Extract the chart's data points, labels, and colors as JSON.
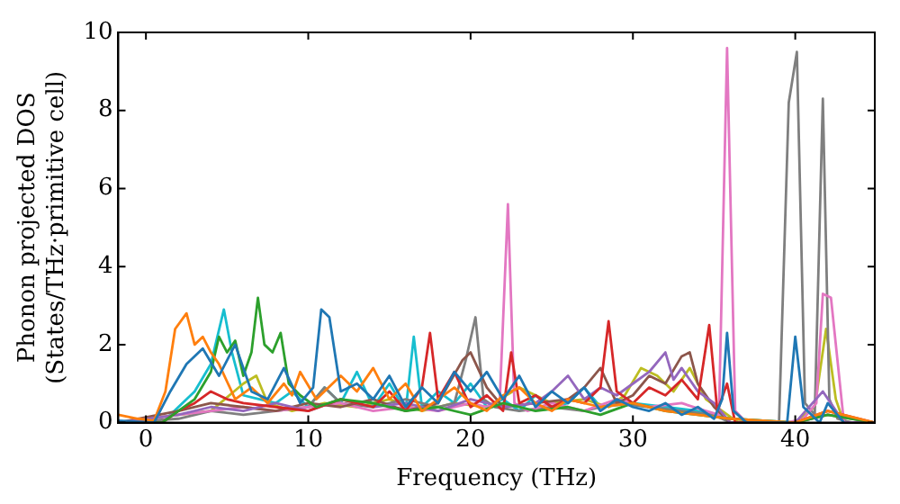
{
  "chart_data": {
    "type": "line",
    "xlabel": "Frequency (THz)",
    "ylabel": "Phonon projected DOS\n(States/THz·primitive cell)",
    "xlim": [
      -1.7,
      44.9
    ],
    "ylim": [
      0,
      10
    ],
    "xticks": [
      0,
      10,
      20,
      30,
      40
    ],
    "yticks": [
      0,
      2,
      4,
      6,
      8,
      10
    ],
    "grid": false,
    "legend": false,
    "marker": "none",
    "line_style": "solid",
    "series": [
      {
        "color": "#1f77b4",
        "x": [
          -1.7,
          0.5,
          1.5,
          2.5,
          3.5,
          4.5,
          5.5,
          6.5,
          7.5,
          8.5,
          9.5,
          10.3,
          10.8,
          11.3,
          12,
          13,
          14,
          15,
          16,
          17,
          18,
          19,
          20,
          21,
          22,
          23,
          24,
          25,
          26,
          27,
          28,
          29,
          30,
          31,
          32,
          33,
          34,
          35,
          35.5,
          35.8,
          36.2,
          37,
          39.5,
          40,
          40.5,
          41.5,
          42,
          43
        ],
        "values": [
          0.05,
          0,
          0.8,
          1.5,
          1.9,
          1.2,
          2.0,
          0.8,
          0.6,
          1.4,
          0.5,
          0.9,
          2.9,
          2.7,
          0.8,
          1.0,
          0.6,
          1.2,
          0.4,
          0.9,
          0.5,
          1.3,
          0.8,
          1.3,
          0.6,
          1.2,
          0.4,
          0.8,
          0.5,
          0.9,
          0.3,
          0.6,
          0.4,
          0.3,
          0.5,
          0.2,
          0.4,
          0.1,
          0.6,
          2.3,
          0.3,
          0,
          0,
          2.2,
          0.4,
          0,
          0.5,
          0
        ]
      },
      {
        "color": "#ff7f0e",
        "x": [
          -1.7,
          -0.5,
          0.5,
          1.2,
          1.8,
          2.5,
          3.0,
          3.5,
          4.0,
          4.5,
          5.5,
          6.5,
          7.5,
          8.5,
          9.0,
          9.5,
          10.5,
          12,
          13,
          14,
          15,
          16,
          17,
          18,
          19,
          20,
          21,
          22,
          23,
          24,
          25,
          26,
          28,
          30,
          32,
          34,
          36,
          40,
          42,
          44.9
        ],
        "values": [
          0.2,
          0.1,
          0.05,
          0.8,
          2.4,
          2.8,
          2.0,
          2.2,
          1.8,
          1.5,
          0.6,
          0.9,
          0.5,
          1.0,
          0.7,
          1.3,
          0.6,
          1.2,
          0.8,
          1.4,
          0.6,
          1.0,
          0.3,
          0.6,
          0.9,
          0.5,
          0.3,
          0.7,
          0.9,
          0.5,
          0.3,
          0.6,
          0.4,
          0.5,
          0.3,
          0.2,
          0.1,
          0,
          0.3,
          0
        ]
      },
      {
        "color": "#2ca02c",
        "x": [
          -1.7,
          1,
          2,
          3,
          4,
          4.5,
          5,
          5.5,
          6,
          6.5,
          6.9,
          7.3,
          7.8,
          8.3,
          8.8,
          9.5,
          10.5,
          12,
          14,
          16,
          18,
          20,
          22,
          24,
          26,
          28,
          30,
          32,
          34,
          36,
          40,
          42,
          44.9
        ],
        "values": [
          0,
          0,
          0.3,
          0.6,
          1.3,
          2.2,
          1.8,
          2.1,
          1.2,
          1.8,
          3.2,
          2.0,
          1.8,
          2.3,
          1.0,
          0.7,
          0.4,
          0.6,
          0.5,
          0.3,
          0.4,
          0.2,
          0.5,
          0.3,
          0.4,
          0.2,
          0.5,
          0.3,
          0.2,
          0.1,
          0,
          0.2,
          0
        ]
      },
      {
        "color": "#d62728",
        "x": [
          -1.7,
          1,
          2,
          3,
          4,
          5,
          6,
          8,
          10,
          12,
          14,
          15,
          16,
          17,
          17.5,
          18,
          19,
          20,
          21,
          22,
          22.5,
          23,
          24,
          25,
          26,
          27,
          28,
          28.5,
          29,
          30,
          31,
          32,
          33,
          34,
          34.7,
          35.2,
          35.8,
          36.3,
          40,
          42,
          44.9
        ],
        "values": [
          0,
          0,
          0.3,
          0.5,
          0.8,
          0.6,
          0.5,
          0.4,
          0.3,
          0.6,
          0.4,
          0.8,
          0.3,
          0.9,
          2.3,
          0.6,
          1.3,
          0.4,
          0.7,
          0.3,
          1.8,
          0.5,
          0.7,
          0.4,
          0.6,
          0.5,
          0.9,
          2.6,
          0.8,
          0.5,
          0.9,
          0.7,
          1.1,
          0.6,
          2.5,
          0.3,
          1.0,
          0,
          0,
          0.3,
          0
        ]
      },
      {
        "color": "#9467bd",
        "x": [
          -1.7,
          2,
          4,
          6,
          8,
          10,
          12,
          14,
          16,
          18,
          20,
          22,
          24,
          25,
          26,
          27,
          28,
          29,
          30,
          31,
          32,
          32.5,
          33,
          34,
          35,
          36,
          40,
          41.7,
          43,
          44.9
        ],
        "values": [
          0,
          0.2,
          0.4,
          0.3,
          0.5,
          0.3,
          0.6,
          0.4,
          0.5,
          0.3,
          0.6,
          0.4,
          0.5,
          0.8,
          1.2,
          0.6,
          0.9,
          0.7,
          1.0,
          1.3,
          1.8,
          1.1,
          1.4,
          0.8,
          0.5,
          0,
          0,
          0.8,
          0,
          0
        ]
      },
      {
        "color": "#8c564b",
        "x": [
          -1.7,
          2,
          4,
          6,
          8,
          10,
          12,
          14,
          16,
          18,
          19.5,
          20,
          21,
          22,
          24,
          26,
          27,
          28,
          29,
          30,
          31,
          32,
          33,
          33.5,
          34,
          35,
          36,
          40,
          42,
          44.9
        ],
        "values": [
          0,
          0.3,
          0.5,
          0.4,
          0.3,
          0.5,
          0.4,
          0.6,
          0.3,
          0.5,
          1.6,
          1.8,
          0.9,
          0.4,
          0.5,
          0.6,
          0.9,
          1.4,
          0.5,
          0.7,
          1.2,
          1.0,
          1.7,
          1.8,
          1.0,
          0.4,
          0,
          0,
          0.2,
          0
        ]
      },
      {
        "color": "#e377c2",
        "x": [
          -1.7,
          2,
          4,
          6,
          8,
          10,
          12,
          14,
          16,
          18,
          20,
          21,
          21.8,
          22.3,
          22.7,
          23.5,
          25,
          27,
          29,
          31,
          33,
          34.5,
          35.3,
          35.8,
          36.3,
          37,
          39.5,
          40.5,
          41.3,
          41.7,
          42.2,
          43,
          44.9
        ],
        "values": [
          0,
          0.2,
          0.3,
          0.4,
          0.3,
          0.4,
          0.5,
          0.3,
          0.4,
          0.3,
          0.5,
          0.4,
          0.6,
          5.6,
          0.5,
          0.3,
          0.5,
          0.3,
          0.6,
          0.4,
          0.5,
          0.3,
          0.2,
          9.6,
          0.3,
          0,
          0,
          0.1,
          0.5,
          3.3,
          3.2,
          0,
          0
        ]
      },
      {
        "color": "#7f7f7f",
        "x": [
          -1.7,
          2,
          4,
          6,
          8,
          10,
          11,
          12,
          14,
          16,
          18,
          19,
          19.7,
          20.3,
          20.8,
          21.5,
          23,
          25,
          27,
          29,
          31,
          33,
          35,
          36,
          39,
          39.6,
          40.1,
          40.6,
          41.2,
          41.7,
          42.1,
          42.6,
          43.5,
          44.9
        ],
        "values": [
          0,
          0.1,
          0.3,
          0.2,
          0.3,
          0.4,
          0.9,
          0.5,
          0.4,
          0.6,
          0.4,
          0.5,
          1.6,
          2.7,
          0.6,
          0.4,
          0.3,
          0.4,
          0.3,
          0.5,
          0.4,
          0.3,
          0.2,
          0,
          0,
          8.2,
          9.5,
          0.5,
          0.2,
          8.3,
          0.6,
          0.1,
          0,
          0
        ]
      },
      {
        "color": "#bcbd22",
        "x": [
          -1.7,
          2,
          4,
          6,
          6.8,
          7.5,
          9,
          11,
          13,
          15,
          17,
          19,
          21,
          23,
          25,
          27,
          28.5,
          29.5,
          30.5,
          31.5,
          32.5,
          33.5,
          34.5,
          35.5,
          36.5,
          40,
          41.2,
          41.9,
          42.5,
          43,
          44.9
        ],
        "values": [
          0,
          0.2,
          0.3,
          1.0,
          1.2,
          0.5,
          0.3,
          0.5,
          0.4,
          0.6,
          0.3,
          0.5,
          0.4,
          0.9,
          0.5,
          0.6,
          0.4,
          0.7,
          1.4,
          1.2,
          0.8,
          1.4,
          0.6,
          0.3,
          0,
          0,
          0.4,
          2.4,
          0.6,
          0,
          0
        ]
      },
      {
        "color": "#17becf",
        "x": [
          -1.7,
          1,
          2,
          3,
          4,
          4.8,
          5.3,
          6,
          7,
          8,
          9,
          10,
          11,
          12,
          13,
          14,
          15,
          16,
          16.5,
          17,
          18,
          19,
          20,
          21,
          22,
          23,
          24,
          25,
          26,
          27,
          28,
          30,
          32,
          34,
          36,
          40
        ],
        "values": [
          0,
          0,
          0.4,
          0.8,
          1.5,
          2.9,
          1.8,
          0.7,
          0.6,
          0.5,
          0.8,
          0.4,
          0.9,
          0.5,
          1.3,
          0.4,
          1.0,
          0.3,
          2.2,
          0.4,
          0.8,
          0.5,
          1.0,
          0.4,
          0.6,
          0.3,
          0.7,
          0.4,
          0.5,
          0.9,
          0.4,
          0.5,
          0.4,
          0.3,
          0.1,
          0
        ]
      }
    ]
  }
}
